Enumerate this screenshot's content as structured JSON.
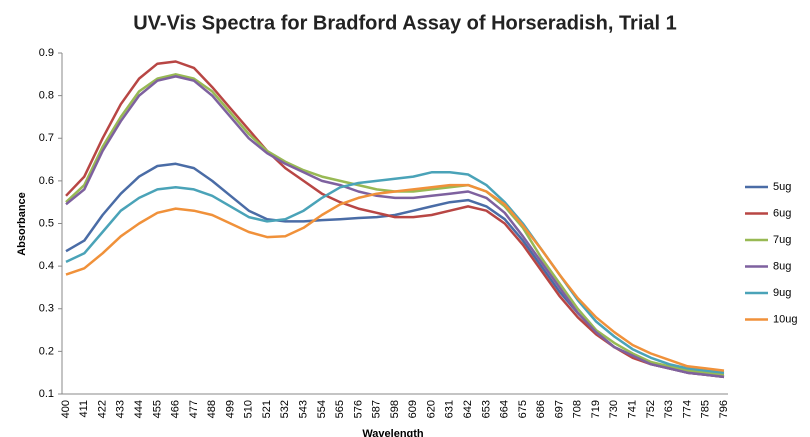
{
  "chart_data": {
    "type": "line",
    "title": "UV-Vis Spectra for Bradford Assay of Horseradish, Trial 1",
    "x_label": "Wavelength",
    "y_label": "Absorbance",
    "categories": [
      "400",
      "411",
      "422",
      "433",
      "444",
      "455",
      "466",
      "477",
      "488",
      "499",
      "510",
      "521",
      "532",
      "543",
      "554",
      "565",
      "576",
      "587",
      "598",
      "609",
      "620",
      "631",
      "642",
      "653",
      "664",
      "675",
      "686",
      "697",
      "708",
      "719",
      "730",
      "741",
      "752",
      "763",
      "774",
      "785",
      "796"
    ],
    "ylim": [
      0.1,
      0.9
    ],
    "yticks": [
      0.1,
      0.2,
      0.3,
      0.4,
      0.5,
      0.6,
      0.7,
      0.8,
      0.9
    ],
    "grid": false,
    "legend": "right",
    "series": [
      {
        "name": "5ug",
        "color": "#4a6ca6",
        "values": [
          0.435,
          0.46,
          0.52,
          0.57,
          0.61,
          0.635,
          0.64,
          0.63,
          0.6,
          0.565,
          0.53,
          0.51,
          0.505,
          0.505,
          0.508,
          0.51,
          0.513,
          0.515,
          0.52,
          0.53,
          0.54,
          0.55,
          0.555,
          0.54,
          0.51,
          0.46,
          0.4,
          0.34,
          0.29,
          0.245,
          0.21,
          0.19,
          0.17,
          0.16,
          0.15,
          0.145,
          0.14
        ]
      },
      {
        "name": "6ug",
        "color": "#b84644",
        "values": [
          0.565,
          0.61,
          0.7,
          0.78,
          0.84,
          0.875,
          0.88,
          0.865,
          0.82,
          0.77,
          0.72,
          0.67,
          0.63,
          0.6,
          0.57,
          0.55,
          0.535,
          0.525,
          0.515,
          0.515,
          0.52,
          0.53,
          0.54,
          0.53,
          0.5,
          0.45,
          0.39,
          0.33,
          0.28,
          0.24,
          0.21,
          0.185,
          0.17,
          0.16,
          0.15,
          0.145,
          0.14
        ]
      },
      {
        "name": "7ug",
        "color": "#98b954",
        "values": [
          0.55,
          0.59,
          0.68,
          0.75,
          0.81,
          0.84,
          0.85,
          0.84,
          0.81,
          0.76,
          0.71,
          0.67,
          0.645,
          0.625,
          0.61,
          0.6,
          0.59,
          0.58,
          0.575,
          0.575,
          0.58,
          0.585,
          0.59,
          0.575,
          0.54,
          0.49,
          0.42,
          0.36,
          0.3,
          0.25,
          0.22,
          0.195,
          0.175,
          0.165,
          0.155,
          0.15,
          0.145
        ]
      },
      {
        "name": "8ug",
        "color": "#7e619f",
        "values": [
          0.545,
          0.58,
          0.67,
          0.74,
          0.8,
          0.835,
          0.845,
          0.835,
          0.8,
          0.75,
          0.7,
          0.665,
          0.64,
          0.62,
          0.6,
          0.59,
          0.575,
          0.565,
          0.56,
          0.56,
          0.565,
          0.57,
          0.575,
          0.56,
          0.525,
          0.47,
          0.41,
          0.35,
          0.29,
          0.245,
          0.21,
          0.19,
          0.17,
          0.16,
          0.15,
          0.145,
          0.14
        ]
      },
      {
        "name": "9ug",
        "color": "#4aa3b8",
        "values": [
          0.41,
          0.43,
          0.48,
          0.53,
          0.56,
          0.58,
          0.585,
          0.58,
          0.565,
          0.54,
          0.515,
          0.505,
          0.51,
          0.53,
          0.56,
          0.585,
          0.595,
          0.6,
          0.605,
          0.61,
          0.62,
          0.62,
          0.615,
          0.59,
          0.55,
          0.5,
          0.44,
          0.38,
          0.32,
          0.27,
          0.235,
          0.205,
          0.185,
          0.17,
          0.16,
          0.155,
          0.15
        ]
      },
      {
        "name": "10ug",
        "color": "#f0913a",
        "values": [
          0.38,
          0.395,
          0.43,
          0.47,
          0.5,
          0.525,
          0.535,
          0.53,
          0.52,
          0.5,
          0.48,
          0.468,
          0.47,
          0.49,
          0.52,
          0.545,
          0.56,
          0.57,
          0.575,
          0.58,
          0.585,
          0.59,
          0.59,
          0.575,
          0.545,
          0.495,
          0.44,
          0.38,
          0.325,
          0.28,
          0.245,
          0.215,
          0.195,
          0.18,
          0.165,
          0.16,
          0.155
        ]
      }
    ]
  }
}
